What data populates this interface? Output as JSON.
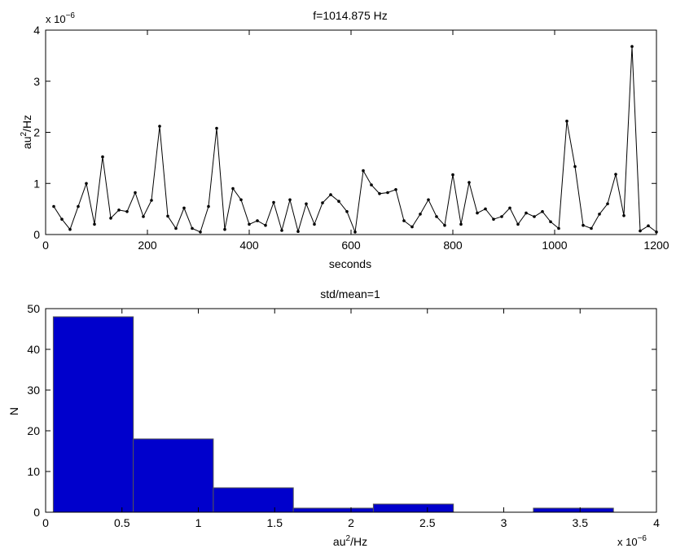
{
  "chart_data": [
    {
      "type": "line",
      "title": "f=1014.875 Hz",
      "xlabel": "seconds",
      "ylabel": "au²/Hz",
      "xlim": [
        0,
        1200
      ],
      "ylim": [
        0,
        4
      ],
      "y_exponent_label": "x 10",
      "y_exponent": "−6",
      "xticks": [
        0,
        200,
        400,
        600,
        800,
        1000,
        1200
      ],
      "yticks": [
        0,
        1,
        2,
        3,
        4
      ],
      "grid": false,
      "color": "#000000",
      "series": [
        {
          "x": [
            16,
            32,
            48,
            64,
            80,
            96,
            112,
            128,
            144,
            160,
            176,
            192,
            208,
            224,
            240,
            256,
            272,
            288,
            304,
            320,
            336,
            352,
            368,
            384,
            400,
            416,
            432,
            448,
            464,
            480,
            496,
            512,
            528,
            544,
            560,
            576,
            592,
            608,
            624,
            640,
            656,
            672,
            688,
            704,
            720,
            736,
            752,
            768,
            784,
            800,
            816,
            832,
            848,
            864,
            880,
            896,
            912,
            928,
            944,
            960,
            976,
            992,
            1008,
            1024,
            1040,
            1056,
            1072,
            1088,
            1104,
            1120,
            1136,
            1152,
            1168,
            1184,
            1200
          ],
          "y": [
            0.55,
            0.3,
            0.1,
            0.55,
            1.0,
            0.2,
            1.52,
            0.32,
            0.48,
            0.45,
            0.82,
            0.35,
            0.67,
            2.12,
            0.36,
            0.12,
            0.52,
            0.12,
            0.05,
            0.55,
            2.08,
            0.1,
            0.9,
            0.68,
            0.2,
            0.27,
            0.18,
            0.63,
            0.08,
            0.68,
            0.06,
            0.6,
            0.2,
            0.62,
            0.78,
            0.65,
            0.45,
            0.05,
            1.25,
            0.97,
            0.8,
            0.82,
            0.88,
            0.27,
            0.15,
            0.4,
            0.68,
            0.35,
            0.18,
            1.17,
            0.2,
            1.02,
            0.42,
            0.5,
            0.3,
            0.35,
            0.52,
            0.2,
            0.42,
            0.35,
            0.45,
            0.25,
            0.12,
            2.22,
            1.33,
            0.18,
            0.12,
            0.4,
            0.6,
            1.18,
            0.37,
            3.68,
            0.07,
            0.17,
            0.05
          ]
        }
      ]
    },
    {
      "type": "bar",
      "title": "std/mean=1",
      "xlabel": "au²/Hz",
      "ylabel": "N",
      "xlim": [
        0,
        4
      ],
      "ylim": [
        0,
        50
      ],
      "x_exponent_label": "x 10",
      "x_exponent": "−6",
      "xticks": [
        0,
        0.5,
        1,
        1.5,
        2,
        2.5,
        3,
        3.5,
        4
      ],
      "yticks": [
        0,
        10,
        20,
        30,
        40,
        50
      ],
      "grid": false,
      "color": "#0000cc",
      "bin_edges": [
        0.05,
        0.574,
        1.098,
        1.622,
        2.146,
        2.67,
        3.194,
        3.718
      ],
      "values": [
        48,
        18,
        6,
        1,
        2,
        0,
        1
      ]
    }
  ]
}
